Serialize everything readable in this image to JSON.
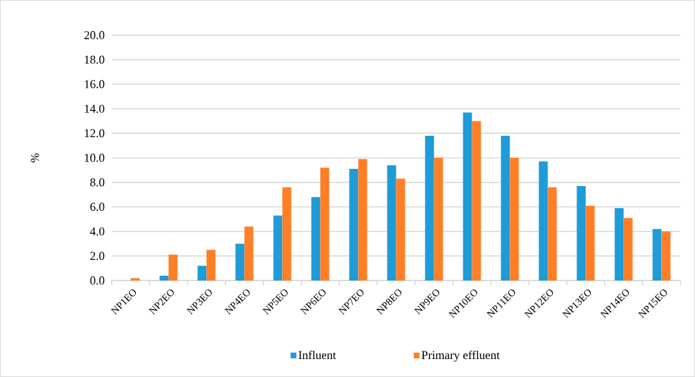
{
  "chart_data": {
    "type": "bar",
    "ylabel": "%",
    "categories": [
      "NP1EO",
      "NP2EO",
      "NP3EO",
      "NP4EO",
      "NP5EO",
      "NP6EO",
      "NP7EO",
      "NP8EO",
      "NP9EO",
      "NP10EO",
      "NP11EO",
      "NP12EO",
      "NP13EO",
      "NP14EO",
      "NP15EO"
    ],
    "series": [
      {
        "name": "Influent",
        "color": "#1f9bd7",
        "values": [
          0,
          0.4,
          1.2,
          3.0,
          5.3,
          6.8,
          9.1,
          9.4,
          11.8,
          13.7,
          11.8,
          9.7,
          7.7,
          5.9,
          4.2
        ]
      },
      {
        "name": "Primary effluent",
        "color": "#ff7f27",
        "values": [
          0.2,
          2.1,
          2.5,
          4.4,
          7.6,
          9.2,
          9.9,
          8.3,
          10.0,
          13.0,
          10.0,
          7.6,
          6.1,
          5.1,
          4.0
        ]
      }
    ],
    "ylim": [
      0,
      20
    ],
    "yticks": [
      {
        "value": 0,
        "label": "0.0"
      },
      {
        "value": 2,
        "label": "2.0"
      },
      {
        "value": 4,
        "label": "4.0"
      },
      {
        "value": 6,
        "label": "6.0"
      },
      {
        "value": 8,
        "label": "8.0"
      },
      {
        "value": 10,
        "label": "10.0"
      },
      {
        "value": 12,
        "label": "12.0"
      },
      {
        "value": 14,
        "label": "14.0"
      },
      {
        "value": 16,
        "label": "16.0"
      },
      {
        "value": 18,
        "label": "18.0"
      },
      {
        "value": 20,
        "label": "20.0"
      }
    ],
    "grid": "y",
    "legend": "bottom"
  }
}
